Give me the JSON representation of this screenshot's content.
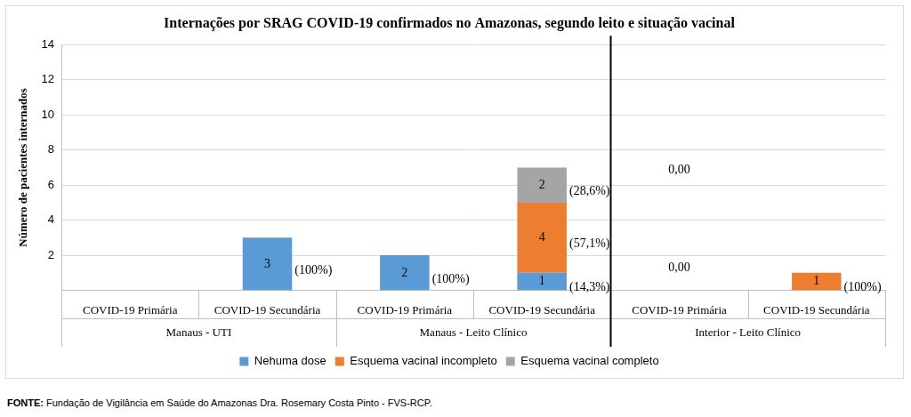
{
  "chart_data": {
    "type": "bar",
    "title": "Internações por SRAG COVID-19 confirmados no Amazonas, segundo leito e situação vacinal",
    "y_label": "Número de pacientes internados",
    "categories": [
      "COVID-19 Primária",
      "COVID-19 Secundária",
      "COVID-19 Primária",
      "COVID-19 Secundária",
      "COVID-19 Primária",
      "COVID-19 Secundária"
    ],
    "groups": [
      "Manaus - UTI",
      "Manaus - UTI",
      "Manaus - Leito Clínico",
      "Manaus - Leito Clínico",
      "Interior - Leito Clínico",
      "Interior - Leito Clínico"
    ],
    "series": [
      {
        "name": "Nehuma dose",
        "color": "#5b9bd5",
        "values": [
          null,
          3,
          2,
          1,
          0,
          null
        ],
        "value_labels": [
          null,
          "3",
          "2",
          "1",
          "0,00",
          null
        ],
        "percent_labels": [
          null,
          "(100%)",
          "(100%)",
          "(14,3%)",
          null,
          null
        ]
      },
      {
        "name": "Esquema vacinal incompleto",
        "color": "#ed7d31",
        "values": [
          null,
          null,
          null,
          4,
          0,
          1
        ],
        "value_labels": [
          null,
          null,
          null,
          "4",
          "0,00",
          "1"
        ],
        "percent_labels": [
          null,
          null,
          null,
          "(57,1%)",
          null,
          "(100%)"
        ]
      },
      {
        "name": "Esquema vacinal completo",
        "color": "#a5a5a5",
        "values": [
          null,
          null,
          null,
          2,
          null,
          null
        ],
        "value_labels": [
          null,
          null,
          null,
          "2",
          null,
          null
        ],
        "percent_labels": [
          null,
          null,
          null,
          "(28,6%)",
          null,
          null
        ]
      }
    ],
    "stacked": true,
    "data_labels": true,
    "ylim": [
      0,
      14
    ],
    "yticks": [
      2,
      4,
      6,
      8,
      10,
      12,
      14
    ],
    "grid": true,
    "legend": "bottom",
    "source": {
      "label": "FONTE:",
      "text": "Fundação de Vigilância em Saúde do Amazonas Dra. Rosemary Costa Pinto - FVS-RCP."
    }
  }
}
